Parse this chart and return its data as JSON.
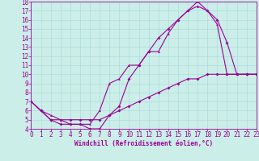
{
  "xlabel": "Windchill (Refroidissement éolien,°C)",
  "bg_color": "#cceee8",
  "line_color": "#990099",
  "grid_color": "#aadddd",
  "xmin": 0,
  "xmax": 23,
  "ymin": 4,
  "ymax": 18,
  "line1_x": [
    0,
    1,
    2,
    3,
    4,
    5,
    6,
    7,
    8,
    9,
    10,
    11,
    12,
    13,
    14,
    15,
    16,
    17,
    18,
    19,
    20,
    21,
    22,
    23
  ],
  "line1_y": [
    7.0,
    6.0,
    5.0,
    4.5,
    4.5,
    4.5,
    4.0,
    4.0,
    5.5,
    6.5,
    9.5,
    11.0,
    12.5,
    14.0,
    15.0,
    16.0,
    17.0,
    18.0,
    17.0,
    16.0,
    13.5,
    10.0,
    10.0,
    10.0
  ],
  "line2_x": [
    0,
    1,
    2,
    3,
    4,
    5,
    6,
    7,
    8,
    9,
    10,
    11,
    12,
    13,
    14,
    15,
    16,
    17,
    18,
    19,
    20,
    21,
    22,
    23
  ],
  "line2_y": [
    7.0,
    6.0,
    5.5,
    5.0,
    4.5,
    4.5,
    4.5,
    6.0,
    9.0,
    9.5,
    11.0,
    11.0,
    12.5,
    12.5,
    14.5,
    16.0,
    17.0,
    17.5,
    17.0,
    15.5,
    10.0,
    10.0,
    10.0,
    10.0
  ],
  "line3_x": [
    0,
    1,
    2,
    3,
    4,
    5,
    6,
    7,
    8,
    9,
    10,
    11,
    12,
    13,
    14,
    15,
    16,
    17,
    18,
    19,
    20,
    21,
    22,
    23
  ],
  "line3_y": [
    7.0,
    6.0,
    5.0,
    5.0,
    5.0,
    5.0,
    5.0,
    5.0,
    5.5,
    6.0,
    6.5,
    7.0,
    7.5,
    8.0,
    8.5,
    9.0,
    9.5,
    9.5,
    10.0,
    10.0,
    10.0,
    10.0,
    10.0,
    10.0
  ],
  "marker1": "D",
  "marker2": "^",
  "marker3": "D",
  "markersize": 2.0,
  "linewidth": 0.8,
  "tick_fontsize": 5.5,
  "xlabel_fontsize": 5.5
}
